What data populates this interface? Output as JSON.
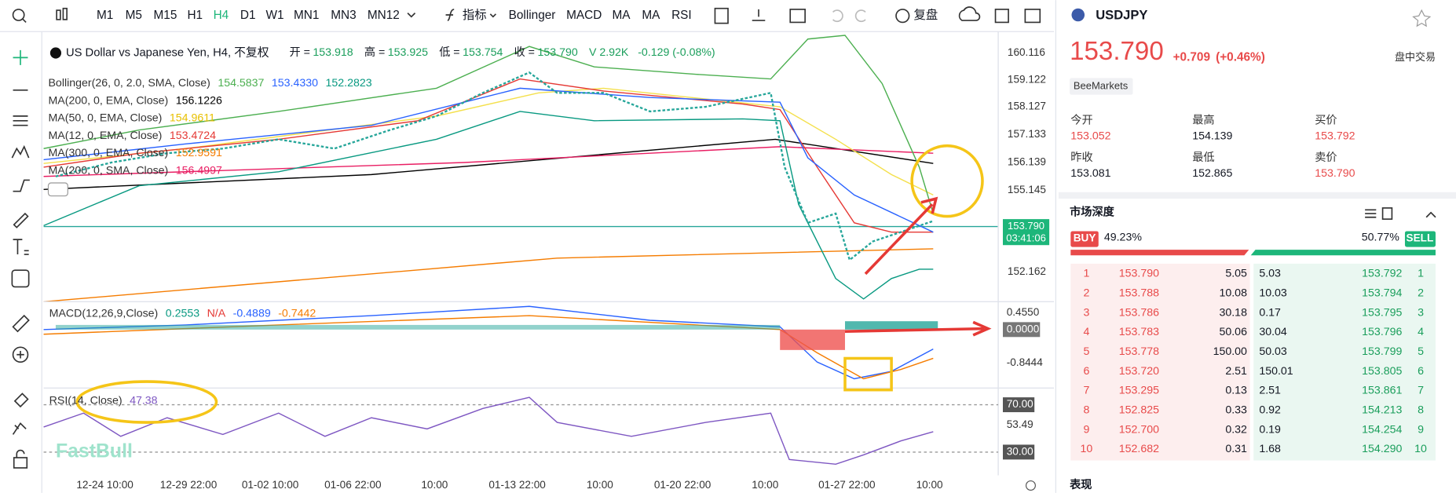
{
  "toolbar": {
    "timeframes": [
      "M1",
      "M5",
      "M15",
      "H1",
      "H4",
      "D1",
      "W1",
      "MN1",
      "MN3",
      "MN12"
    ],
    "indicators_label": "指标",
    "indicators": [
      "Bollinger",
      "MACD",
      "MA",
      "MA",
      "RSI"
    ],
    "replay": "复盘"
  },
  "chart": {
    "legend_title": "US Dollar vs Japanese Yen, H4, 不复权",
    "ohlc": [
      {
        "label": "开 =",
        "value": "153.918"
      },
      {
        "label": "高 =",
        "value": "153.925"
      },
      {
        "label": "低 =",
        "value": "153.754"
      },
      {
        "label": "收 =",
        "value": "153.790"
      }
    ],
    "volume": "V 2.92K",
    "change": "-0.129 (-0.08%)",
    "indicators": [
      {
        "name": "Bollinger(26, 0, 2.0, SMA, Close)",
        "values": [
          "154.5837",
          "153.4330",
          "152.2823"
        ]
      },
      {
        "name": "MA(200, 0, EMA, Close)",
        "values": [
          "156.1226"
        ]
      },
      {
        "name": "MA(50, 0, EMA, Close)",
        "values": [
          "154.9611"
        ]
      },
      {
        "name": "MA(12, 0, EMA, Close)",
        "values": [
          "153.4724"
        ]
      },
      {
        "name": "MA(300, 0, EMA, Close)",
        "values": [
          "152.9591"
        ]
      },
      {
        "name": "MA(200, 0, SMA, Close)",
        "values": [
          "156.4997"
        ]
      }
    ],
    "price_axis": [
      "160.116",
      "159.122",
      "158.127",
      "157.133",
      "156.139",
      "155.145",
      "152.162"
    ],
    "current_price": "153.790",
    "countdown": "03:41:06",
    "macd": {
      "name": "MACD(12,26,9,Close)",
      "values": [
        "0.2553",
        "N/A",
        "-0.4889",
        "-0.7442"
      ],
      "axis": [
        "0.4550",
        "0.0000",
        "-0.8444"
      ]
    },
    "rsi": {
      "name": "RSI(14, Close)",
      "value": "47.38",
      "axis": [
        "70.00",
        "53.49",
        "30.00"
      ]
    },
    "time_axis": [
      "12-24 10:00",
      "12-29 22:00",
      "01-02 10:00",
      "01-06 22:00",
      "10:00",
      "01-13 22:00",
      "10:00",
      "01-20 22:00",
      "10:00",
      "01-27 22:00",
      "10:00"
    ],
    "watermark": "FastBull"
  },
  "quote": {
    "symbol": "USDJPY",
    "price": "153.790",
    "change": "+0.709",
    "change_pct": "(+0.46%)",
    "session": "盘中交易",
    "source": "BeeMarkets",
    "stats": [
      {
        "label": "今开",
        "value": "153.052"
      },
      {
        "label": "最高",
        "value": "154.139"
      },
      {
        "label": "买价",
        "value": "153.792"
      },
      {
        "label": "昨收",
        "value": "153.081"
      },
      {
        "label": "最低",
        "value": "152.865"
      },
      {
        "label": "卖价",
        "value": "153.790"
      }
    ]
  },
  "depth": {
    "title": "市场深度",
    "buy_label": "BUY",
    "buy_pct": "49.23%",
    "sell_pct": "50.77%",
    "sell_label": "SELL",
    "rows": [
      {
        "rank": "1",
        "bid": "153.790",
        "bid_volume": "5.05",
        "ask_volume": "5.03",
        "ask": "153.792"
      },
      {
        "rank": "2",
        "bid": "153.788",
        "bid_volume": "10.08",
        "ask_volume": "10.03",
        "ask": "153.794"
      },
      {
        "rank": "3",
        "bid": "153.786",
        "bid_volume": "30.18",
        "ask_volume": "0.17",
        "ask": "153.795"
      },
      {
        "rank": "4",
        "bid": "153.783",
        "bid_volume": "50.06",
        "ask_volume": "30.04",
        "ask": "153.796"
      },
      {
        "rank": "5",
        "bid": "153.778",
        "bid_volume": "150.00",
        "ask_volume": "50.03",
        "ask": "153.799"
      },
      {
        "rank": "6",
        "bid": "153.720",
        "bid_volume": "2.51",
        "ask_volume": "150.01",
        "ask": "153.805"
      },
      {
        "rank": "7",
        "bid": "153.295",
        "bid_volume": "0.13",
        "ask_volume": "2.51",
        "ask": "153.861"
      },
      {
        "rank": "8",
        "bid": "152.825",
        "bid_volume": "0.33",
        "ask_volume": "0.92",
        "ask": "154.213"
      },
      {
        "rank": "9",
        "bid": "152.700",
        "bid_volume": "0.32",
        "ask_volume": "0.19",
        "ask": "154.254"
      },
      {
        "rank": "10",
        "bid": "152.682",
        "bid_volume": "0.31",
        "ask_volume": "1.68",
        "ask": "154.290"
      }
    ]
  },
  "performance_title": "表现"
}
